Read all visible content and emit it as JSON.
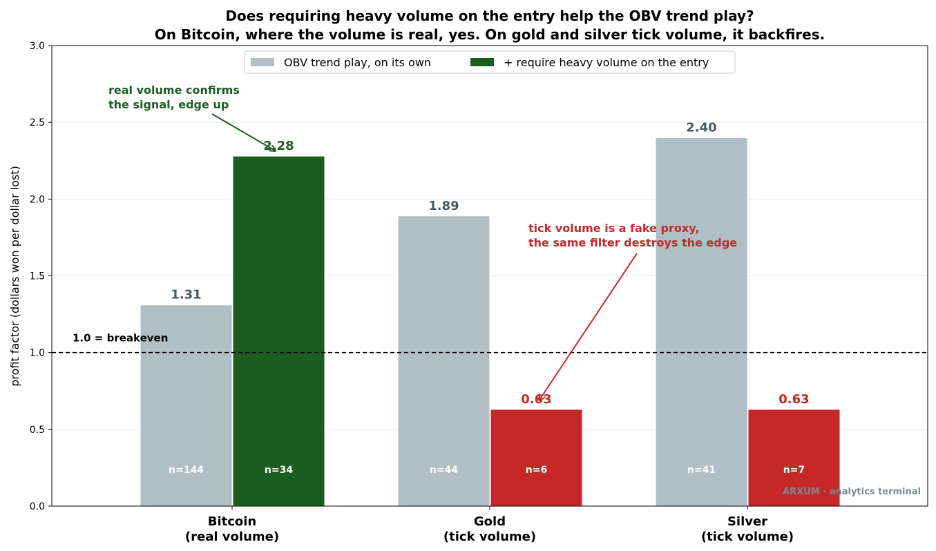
{
  "chart_data": {
    "type": "bar",
    "title_line1": "Does requiring heavy volume on the entry help the OBV trend play?",
    "title_line2": "On Bitcoin, where the volume is real, yes. On gold and silver tick volume, it backfires.",
    "ylabel": "profit factor (dollars won per dollar lost)",
    "xlabel": "",
    "ylim": [
      0,
      3.0
    ],
    "yticks": [
      "0.0",
      "0.5",
      "1.0",
      "1.5",
      "2.0",
      "2.5",
      "3.0"
    ],
    "ytick_values": [
      0,
      0.5,
      1.0,
      1.5,
      2.0,
      2.5,
      3.0
    ],
    "grid": "horizontal",
    "legend_position": "top-center",
    "categories": [
      {
        "line1": "Bitcoin",
        "line2": "(real volume)"
      },
      {
        "line1": "Gold",
        "line2": "(tick volume)"
      },
      {
        "line1": "Silver",
        "line2": "(tick volume)"
      }
    ],
    "series": [
      {
        "name": "OBV trend play, on its own",
        "values": [
          1.31,
          1.89,
          2.4
        ],
        "value_labels": [
          "1.31",
          "1.89",
          "2.40"
        ],
        "n_labels": [
          "n=144",
          "n=44",
          "n=41"
        ],
        "colors": [
          "#b0bec5",
          "#b0bec5",
          "#b0bec5"
        ],
        "label_colors": [
          "#455a64",
          "#455a64",
          "#455a64"
        ]
      },
      {
        "name": "+ require heavy volume on the entry",
        "values": [
          2.28,
          0.63,
          0.63
        ],
        "value_labels": [
          "2.28",
          "0.63",
          "0.63"
        ],
        "n_labels": [
          "n=34",
          "n=6",
          "n=7"
        ],
        "colors": [
          "#1b5e20",
          "#c62828",
          "#c62828"
        ],
        "label_colors": [
          "#1b5e20",
          "#c62828",
          "#c62828"
        ]
      }
    ],
    "legend_colors": [
      "#b0bec5",
      "#1b5e20"
    ],
    "reference_line": {
      "value": 1.0,
      "label": "1.0 = breakeven"
    },
    "annotations": [
      {
        "line1": "real volume confirms",
        "line2": "the signal, edge up",
        "color": "#1b5e20"
      },
      {
        "line1": "tick volume is a fake proxy,",
        "line2": "the same filter destroys the edge",
        "color": "#c62828"
      }
    ],
    "watermark": "ARXUM · analytics terminal"
  }
}
